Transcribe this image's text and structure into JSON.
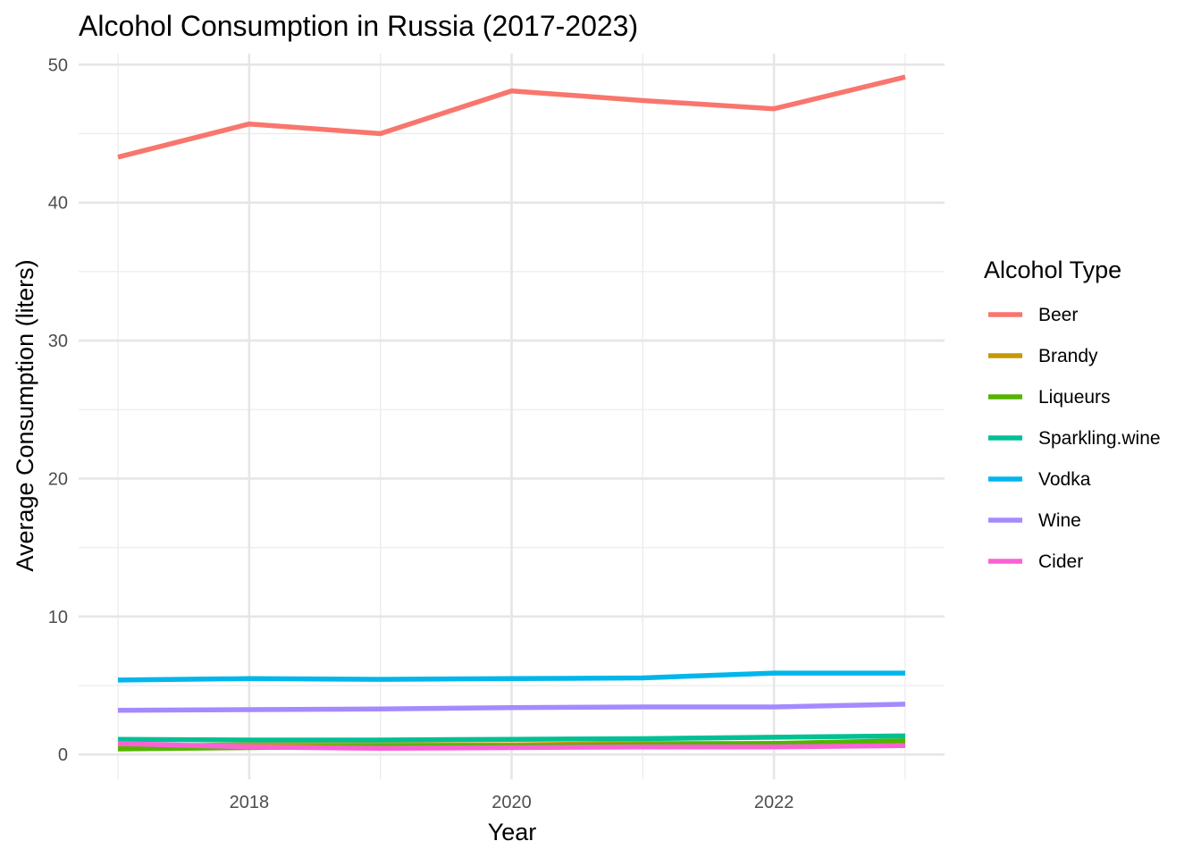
{
  "chart_data": {
    "type": "line",
    "title": "Alcohol Consumption in Russia (2017-2023)",
    "xlabel": "Year",
    "ylabel": "Average Consumption (liters)",
    "x": [
      2017,
      2018,
      2019,
      2020,
      2021,
      2022,
      2023
    ],
    "x_ticks": [
      2018,
      2020,
      2022
    ],
    "xlim": [
      2016.7,
      2023.3
    ],
    "y_ticks": [
      0,
      10,
      20,
      30,
      40,
      50
    ],
    "ylim": [
      -1.8,
      50.8
    ],
    "grid": true,
    "legend": {
      "title": "Alcohol Type",
      "placement": "right"
    },
    "series": [
      {
        "name": "Beer",
        "color": "#F8766D",
        "values": [
          43.3,
          45.7,
          45.0,
          48.1,
          47.4,
          46.8,
          49.1
        ]
      },
      {
        "name": "Brandy",
        "color": "#C49A00",
        "values": [
          0.6,
          0.7,
          0.7,
          0.7,
          0.8,
          0.8,
          0.9
        ]
      },
      {
        "name": "Liqueurs",
        "color": "#53B400",
        "values": [
          0.4,
          0.5,
          0.6,
          0.6,
          0.7,
          0.8,
          1.0
        ]
      },
      {
        "name": "Sparkling.wine",
        "color": "#00C094",
        "values": [
          1.1,
          1.05,
          1.05,
          1.1,
          1.15,
          1.25,
          1.35
        ]
      },
      {
        "name": "Vodka",
        "color": "#00B6EB",
        "values": [
          5.4,
          5.5,
          5.45,
          5.5,
          5.55,
          5.9,
          5.9
        ]
      },
      {
        "name": "Wine",
        "color": "#A58AFF",
        "values": [
          3.2,
          3.25,
          3.3,
          3.4,
          3.45,
          3.45,
          3.65
        ]
      },
      {
        "name": "Cider",
        "color": "#FB61D7",
        "values": [
          0.8,
          0.55,
          0.45,
          0.5,
          0.55,
          0.55,
          0.65
        ]
      }
    ]
  }
}
